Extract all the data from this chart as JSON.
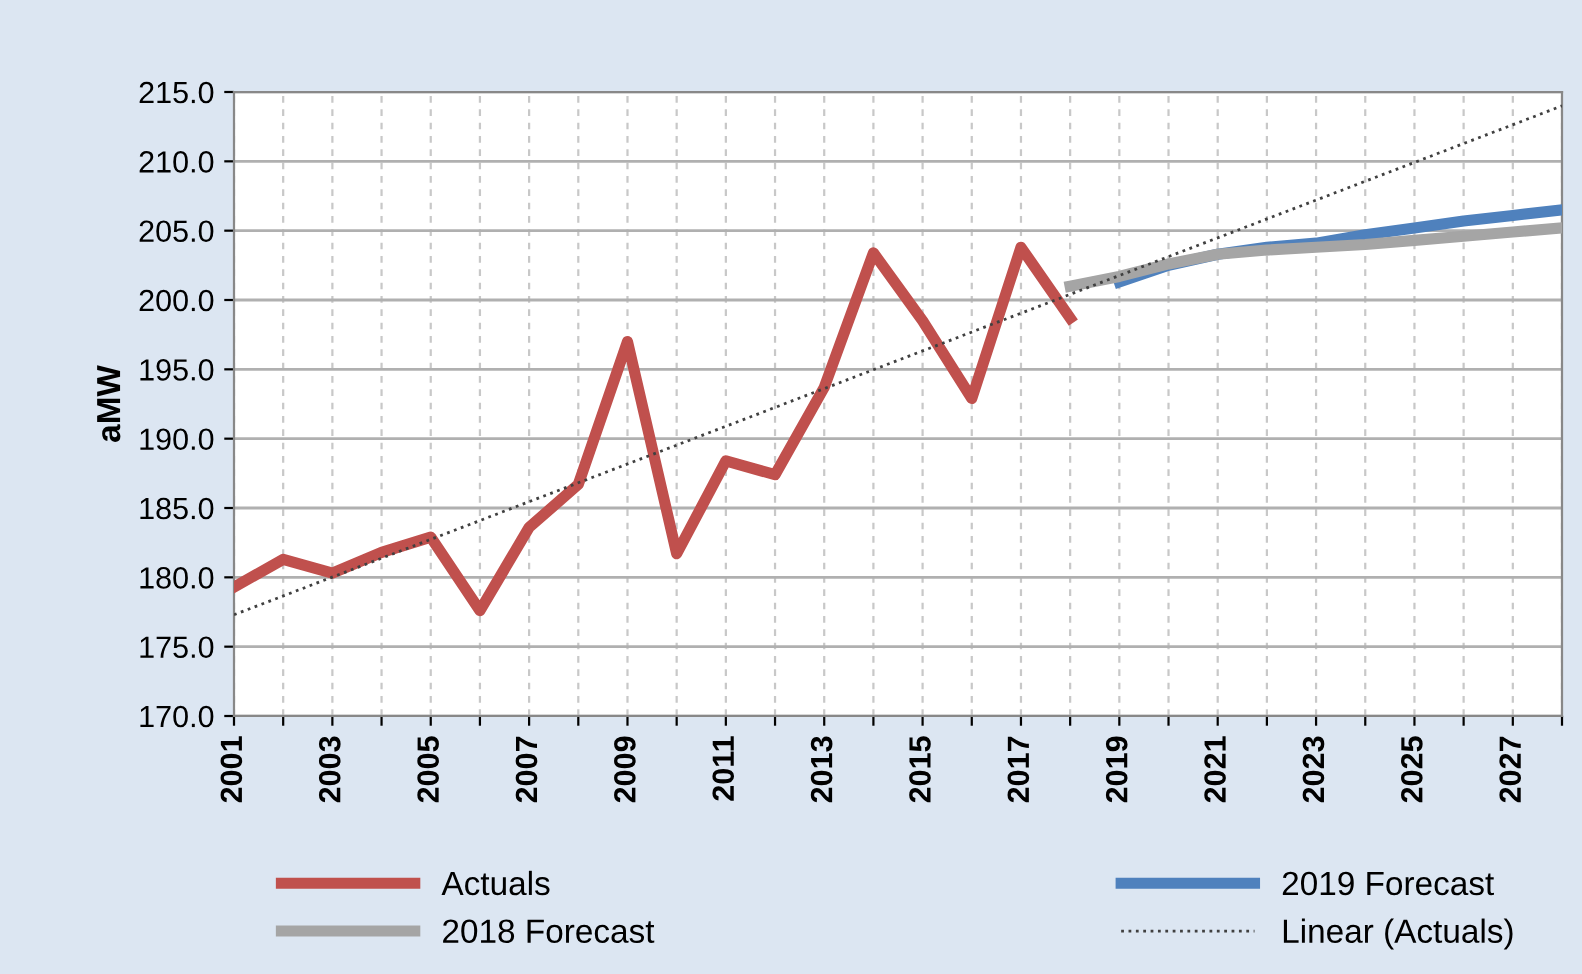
{
  "chart_data": {
    "type": "line",
    "ylabel": "aMW",
    "xlim": [
      2001,
      2028
    ],
    "xticks": [
      2001,
      {
        "value": 2002,
        "label": null
      },
      2003,
      {
        "value": 2004,
        "label": null
      },
      2005,
      {
        "value": 2006,
        "label": null
      },
      2007,
      {
        "value": 2008,
        "label": null
      },
      2009,
      {
        "value": 2010,
        "label": null
      },
      2011,
      {
        "value": 2012,
        "label": null
      },
      2013,
      {
        "value": 2014,
        "label": null
      },
      2015,
      {
        "value": 2016,
        "label": null
      },
      2017,
      {
        "value": 2018,
        "label": null
      },
      2019,
      {
        "value": 2020,
        "label": null
      },
      2021,
      {
        "value": 2022,
        "label": null
      },
      2023,
      {
        "value": 2024,
        "label": null
      },
      2025,
      {
        "value": 2026,
        "label": null
      },
      2027,
      {
        "value": 2028,
        "label": null
      }
    ],
    "ylim": [
      170,
      215
    ],
    "yticks": [
      {
        "value": 170,
        "label": "170.0"
      },
      {
        "value": 175,
        "label": "175.0"
      },
      {
        "value": 180,
        "label": "180.0"
      },
      {
        "value": 185,
        "label": "185.0"
      },
      {
        "value": 190,
        "label": "190.0"
      },
      {
        "value": 195,
        "label": "195.0"
      },
      {
        "value": 200,
        "label": "200.0"
      },
      {
        "value": 205,
        "label": "205.0"
      },
      {
        "value": 210,
        "label": "210.0"
      },
      {
        "value": 215,
        "label": "215.0"
      }
    ],
    "grid": true,
    "legend": "bottom",
    "marker": "none",
    "series": [
      {
        "name": "Actuals",
        "color": "#c0504d",
        "x": [
          2001,
          2002,
          2003,
          2004,
          2005,
          2006,
          2007,
          2008,
          2009,
          2010,
          2011,
          2012,
          2013,
          2014,
          2015,
          2016,
          2017,
          2018
        ],
        "values": [
          179.3,
          181.3,
          180.3,
          181.8,
          182.9,
          177.6,
          183.6,
          186.7,
          197.0,
          181.7,
          188.4,
          187.4,
          193.7,
          203.4,
          198.5,
          192.9,
          203.8,
          198.7
        ]
      },
      {
        "name": "2019 Forecast",
        "color": "#4f81bd",
        "x": [
          2019,
          2020,
          2021,
          2022,
          2023,
          2024,
          2025,
          2026,
          2027,
          2028
        ],
        "values": [
          201.3,
          202.5,
          203.3,
          203.8,
          204.1,
          204.7,
          205.2,
          205.7,
          206.1,
          206.5
        ]
      },
      {
        "name": "2018 Forecast",
        "color": "#a5a5a5",
        "x": [
          2018,
          2019,
          2020,
          2021,
          2022,
          2023,
          2024,
          2025,
          2026,
          2027,
          2028
        ],
        "values": [
          201.0,
          201.7,
          202.6,
          203.3,
          203.6,
          203.8,
          204.0,
          204.3,
          204.6,
          204.9,
          205.2
        ]
      },
      {
        "name": "Linear (Actuals)",
        "color": "#404040",
        "line_style": "dotted",
        "x": [
          2001,
          2028
        ],
        "values": [
          177.3,
          214.0
        ]
      }
    ]
  }
}
